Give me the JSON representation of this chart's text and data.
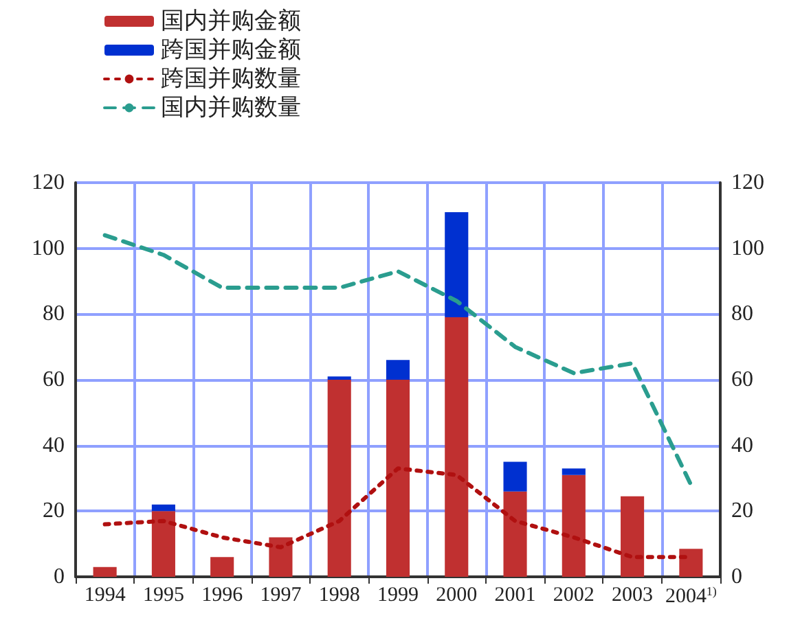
{
  "chart_data": {
    "type": "bar",
    "stacked": true,
    "grid": true,
    "legend": "top left",
    "categories": [
      "1994",
      "1995",
      "1996",
      "1997",
      "1998",
      "1999",
      "2000",
      "2001",
      "2002",
      "2003",
      "2004$^{1)}$"
    ],
    "series": [
      {
        "name": "国内并购金额",
        "color": "#c03030",
        "values": [
          3,
          20,
          6,
          12,
          60,
          60,
          79,
          26,
          31,
          24.5,
          8.5
        ]
      },
      {
        "name": "跨国并购金额",
        "color": "#0030d0",
        "values": [
          null,
          2,
          null,
          null,
          1,
          6,
          32,
          9,
          2,
          null,
          null
        ]
      },
      {
        "name": "跨国并购数量",
        "type": "line",
        "line_style": "dotted",
        "color": "#b01010",
        "values": [
          16,
          17,
          12,
          9,
          17,
          33,
          31,
          17,
          12,
          6,
          6
        ]
      },
      {
        "name": "国内并购数量",
        "type": "line",
        "line_style": "dashed",
        "color": "#2a9d8f",
        "values": [
          104,
          98,
          88,
          88,
          88,
          93,
          84,
          70,
          62,
          65,
          28
        ]
      }
    ],
    "ylim": [
      0,
      120
    ],
    "yticks": [
      0,
      20,
      40,
      60,
      80,
      100,
      120
    ],
    "y2lim": [
      0,
      120
    ],
    "y2ticks": [
      0,
      20,
      40,
      60,
      80,
      100,
      120
    ],
    "marker": "none"
  }
}
